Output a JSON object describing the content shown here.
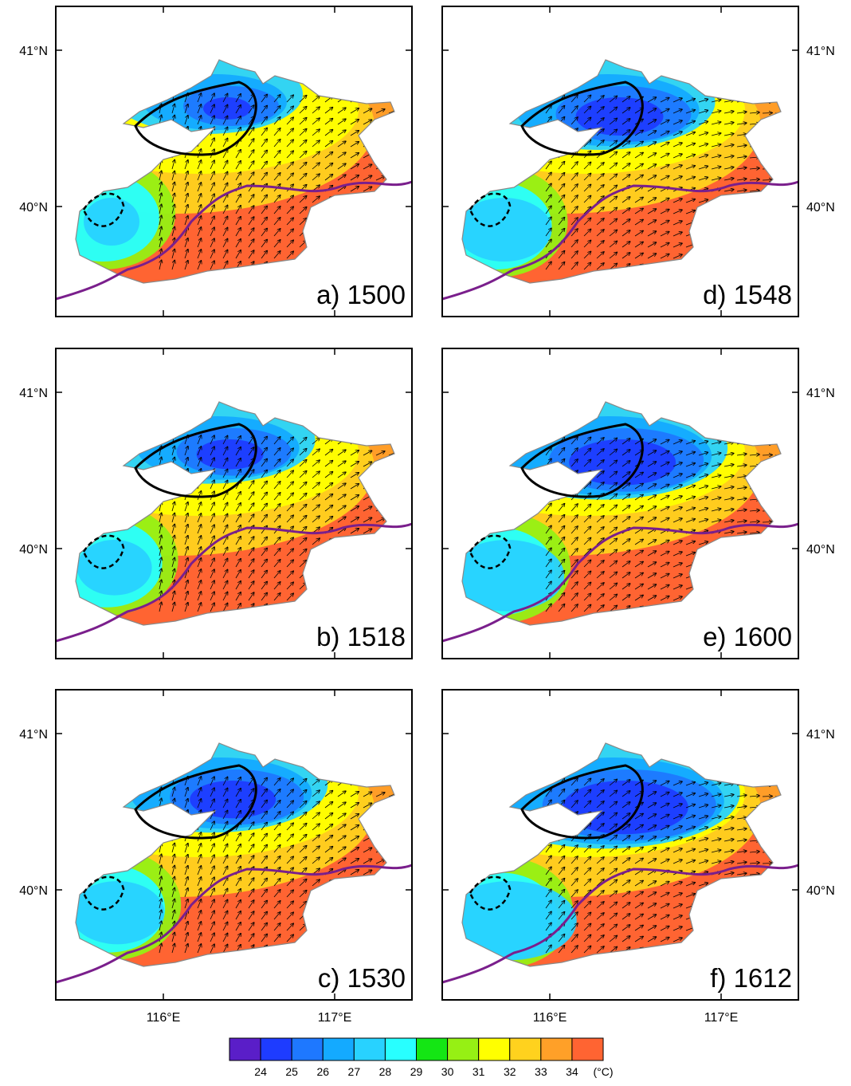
{
  "panels": [
    {
      "label": "a) 1500"
    },
    {
      "label": "b) 1518"
    },
    {
      "label": "c) 1530"
    },
    {
      "label": "d) 1548"
    },
    {
      "label": "e) 1600"
    },
    {
      "label": "f) 1612"
    }
  ],
  "axes": {
    "lat_ticks": [
      {
        "value": 41,
        "label": "41°N"
      },
      {
        "value": 40,
        "label": "40°N"
      }
    ],
    "lon_ticks": [
      {
        "value": 116,
        "label": "116°E"
      },
      {
        "value": 117,
        "label": "117°E"
      }
    ]
  },
  "colorbar": {
    "levels": [
      24,
      25,
      26,
      27,
      28,
      29,
      30,
      31,
      32,
      33,
      34
    ],
    "colors": [
      "#5a1ec8",
      "#1e3cff",
      "#1e78ff",
      "#14aaff",
      "#28d2ff",
      "#28ffff",
      "#14e614",
      "#96f014",
      "#ffff00",
      "#ffd21e",
      "#ffa028",
      "#ff6432"
    ],
    "unit": "(°C)"
  }
}
